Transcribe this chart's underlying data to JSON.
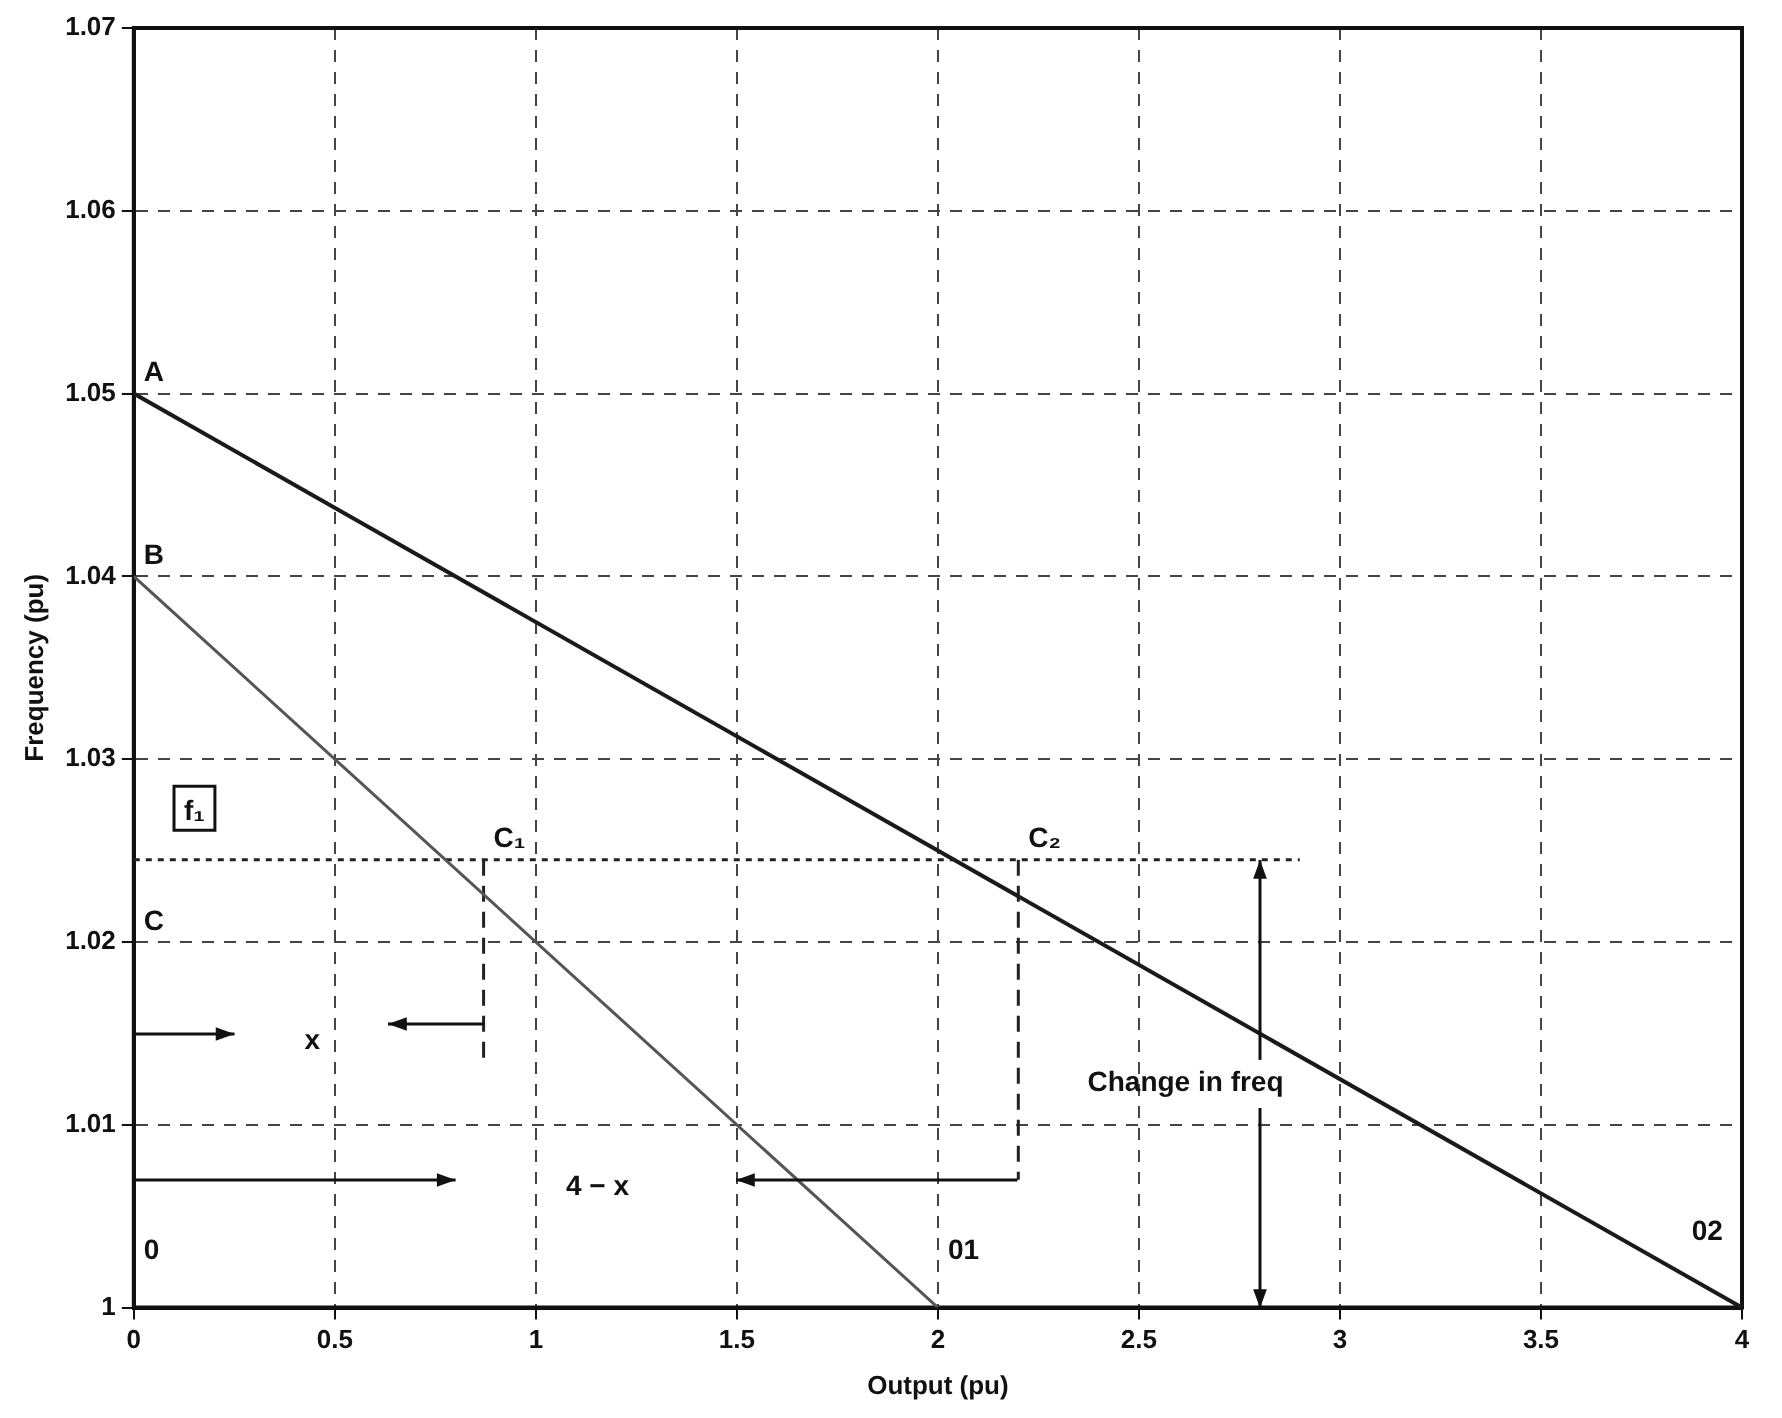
{
  "chart_data": {
    "type": "line",
    "xlabel": "Output (pu)",
    "ylabel": "Frequency (pu)",
    "series": [
      {
        "color": "#1a1a1a",
        "x": [
          0,
          4
        ],
        "values": [
          1.05,
          1.0
        ]
      },
      {
        "color": "#555555",
        "x": [
          0,
          2
        ],
        "values": [
          1.04,
          1.0
        ]
      },
      {
        "color": "#222222",
        "x": [
          0,
          2.9
        ],
        "values": [
          1.0245,
          1.0245
        ],
        "line_style": "dotted"
      },
      {
        "color": "#222222",
        "x": [
          0.87,
          0.87
        ],
        "values": [
          1.0245,
          1.0135
        ],
        "line_style": "dashed"
      },
      {
        "color": "#222222",
        "x": [
          2.2,
          2.2
        ],
        "values": [
          1.0245,
          1.007
        ],
        "line_style": "dashed"
      }
    ],
    "xlim": [
      0,
      4
    ],
    "xticks": [
      0,
      0.5,
      1,
      1.5,
      2,
      2.5,
      3,
      3.5,
      4
    ],
    "ylim": [
      1,
      1.07
    ],
    "yticks": [
      1,
      1.01,
      1.02,
      1.03,
      1.04,
      1.05,
      1.06,
      1.07
    ],
    "grid": true,
    "legend": false,
    "marker": "none",
    "line_style": "solid",
    "annotations": [
      {
        "text": "A",
        "x": 0,
        "y": 1.05
      },
      {
        "text": "B",
        "x": 0,
        "y": 1.04
      },
      {
        "text": "C₁",
        "x": 0.87,
        "y": 1.0245
      },
      {
        "text": "C₂",
        "x": 2.2,
        "y": 1.0245
      },
      "C",
      "f₁",
      "x",
      "4 − x",
      {
        "text": "Change in freq",
        "x": 2.8,
        "y": 1.0245
      },
      "0",
      "01",
      "02"
    ]
  }
}
